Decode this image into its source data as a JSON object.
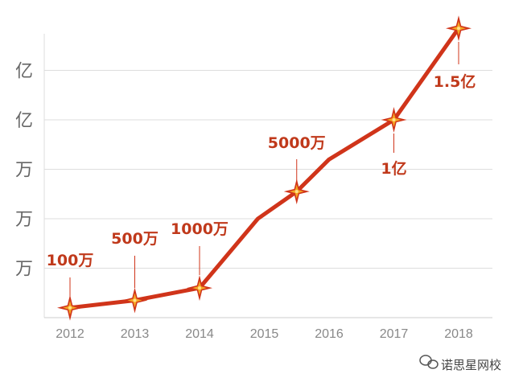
{
  "chart_data": {
    "type": "line",
    "x": [
      "2012",
      "2013",
      "2014",
      "2015",
      "2016",
      "2017",
      "2018"
    ],
    "y_tick_labels": [
      "亿",
      "亿",
      "万",
      "万",
      "万"
    ],
    "grid": true,
    "series": [
      {
        "points": [
          {
            "x": 2012.0,
            "y": 0.2
          },
          {
            "x": 2013.0,
            "y": 0.35
          },
          {
            "x": 2014.0,
            "y": 0.6
          },
          {
            "x": 2014.9,
            "y": 2.0
          },
          {
            "x": 2015.5,
            "y": 2.55
          },
          {
            "x": 2016.0,
            "y": 3.2
          },
          {
            "x": 2017.0,
            "y": 4.0
          },
          {
            "x": 2018.0,
            "y": 5.85
          }
        ]
      }
    ],
    "annotations": [
      {
        "x": 2012.0,
        "y": 0.2,
        "label": "100万"
      },
      {
        "x": 2013.0,
        "y": 0.35,
        "label": "500万"
      },
      {
        "x": 2014.0,
        "y": 0.6,
        "label": "1000万"
      },
      {
        "x": 2015.5,
        "y": 2.55,
        "label": "5000万"
      },
      {
        "x": 2017.0,
        "y": 4.0,
        "label": "1亿"
      },
      {
        "x": 2018.0,
        "y": 5.85,
        "label": "1.5亿"
      }
    ],
    "colors": {
      "line": "#d0341a",
      "star_outer": "#d0341a",
      "star_inner": "#f5a623",
      "grid": "#dddddd"
    }
  },
  "watermark": {
    "icon": "wechat-icon",
    "text": "诺思星网校"
  }
}
